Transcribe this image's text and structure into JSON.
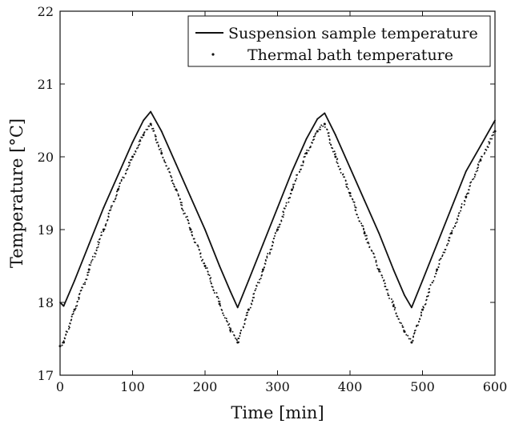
{
  "chart_data": {
    "type": "line",
    "title": "",
    "xlabel": "Time [min]",
    "ylabel": "Temperature [°C]",
    "xlim": [
      0,
      600
    ],
    "ylim": [
      17,
      22
    ],
    "xticks": [
      0,
      100,
      200,
      300,
      400,
      500,
      600
    ],
    "yticks": [
      17,
      18,
      19,
      20,
      21,
      22
    ],
    "grid": false,
    "legend_position": "top-right",
    "series": [
      {
        "name": "Suspension sample temperature",
        "style": "line",
        "color": "#111111",
        "x": [
          0,
          3,
          5,
          20,
          40,
          60,
          80,
          100,
          115,
          125,
          140,
          160,
          180,
          200,
          220,
          235,
          245,
          260,
          280,
          300,
          320,
          340,
          355,
          365,
          380,
          400,
          420,
          440,
          460,
          475,
          485,
          500,
          520,
          540,
          560,
          580,
          600
        ],
        "y": [
          18.0,
          17.97,
          17.95,
          18.3,
          18.8,
          19.3,
          19.75,
          20.2,
          20.5,
          20.62,
          20.35,
          19.9,
          19.45,
          19.0,
          18.5,
          18.15,
          17.93,
          18.3,
          18.8,
          19.3,
          19.8,
          20.25,
          20.52,
          20.6,
          20.3,
          19.85,
          19.4,
          18.95,
          18.45,
          18.1,
          17.93,
          18.3,
          18.8,
          19.3,
          19.8,
          20.15,
          20.5
        ]
      },
      {
        "name": "Thermal bath temperature",
        "style": "dots",
        "color": "#111111",
        "x": [
          0,
          5,
          20,
          40,
          60,
          80,
          100,
          115,
          125,
          140,
          160,
          180,
          200,
          220,
          235,
          245,
          260,
          280,
          300,
          320,
          340,
          355,
          365,
          380,
          400,
          420,
          440,
          460,
          475,
          485,
          500,
          520,
          540,
          560,
          580,
          600
        ],
        "y": [
          17.4,
          17.45,
          17.9,
          18.45,
          19.0,
          19.55,
          20.0,
          20.3,
          20.45,
          20.05,
          19.55,
          19.0,
          18.5,
          17.98,
          17.62,
          17.45,
          17.9,
          18.45,
          19.0,
          19.55,
          20.05,
          20.35,
          20.45,
          20.0,
          19.5,
          18.95,
          18.45,
          17.95,
          17.6,
          17.45,
          17.9,
          18.45,
          18.95,
          19.45,
          19.95,
          20.35
        ]
      }
    ]
  }
}
